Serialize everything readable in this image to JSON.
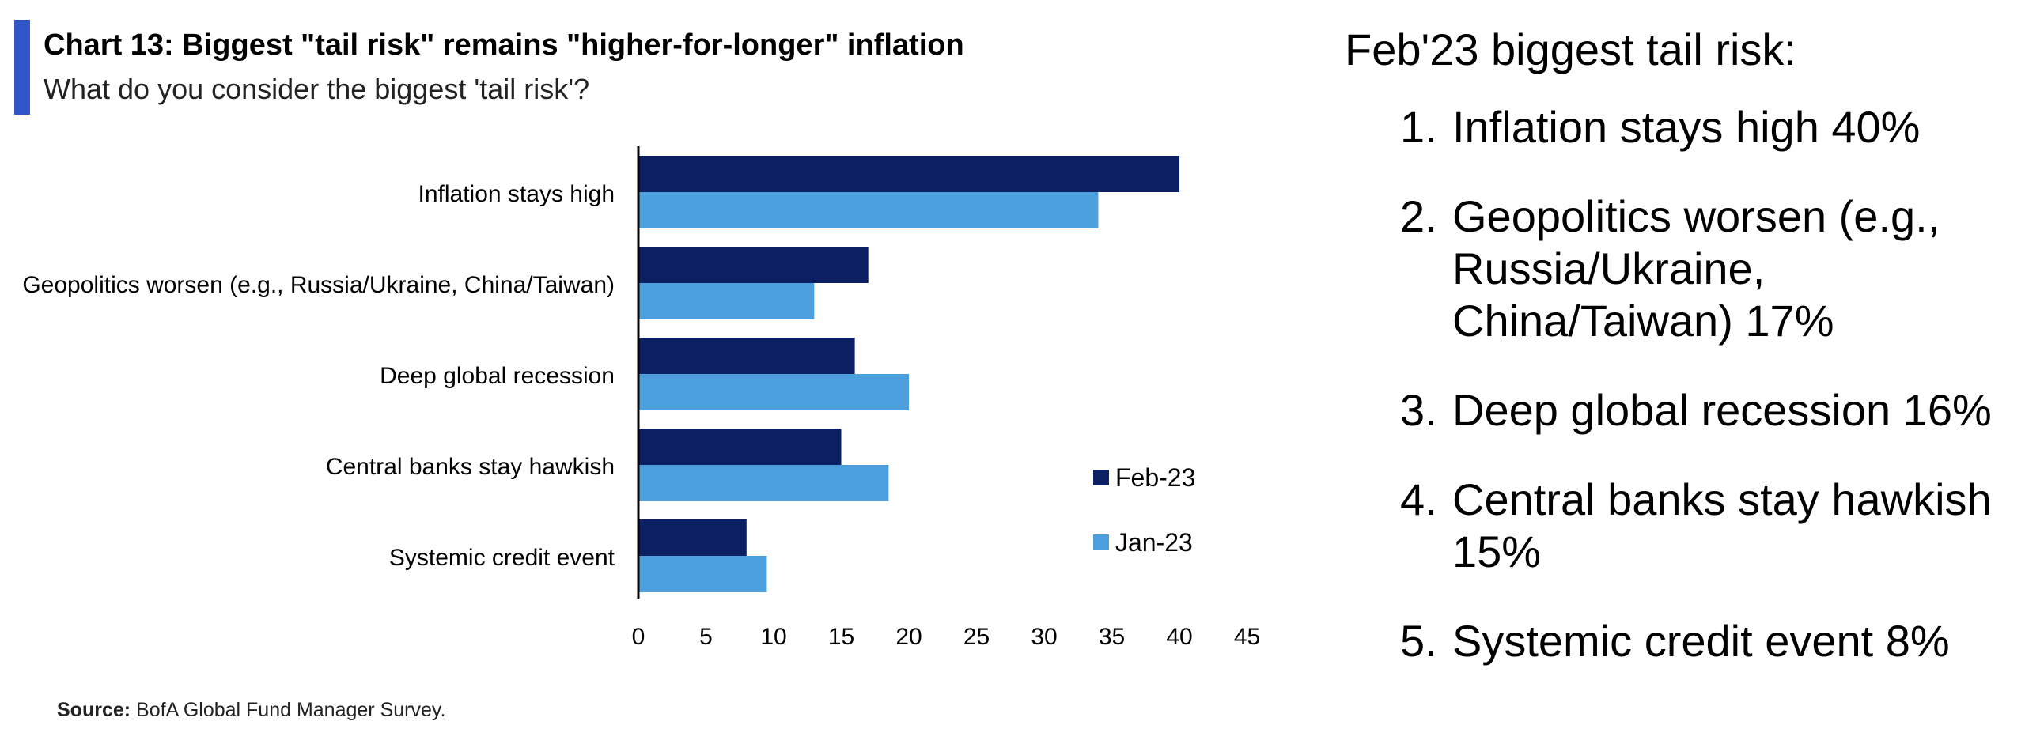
{
  "header": {
    "title": "Chart 13: Biggest \"tail risk\" remains \"higher-for-longer\" inflation",
    "subtitle": "What do you consider the biggest 'tail risk'?"
  },
  "footer": {
    "source_label": "Source:",
    "source_text": "BofA Global Fund Manager Survey."
  },
  "chart_data": {
    "type": "bar",
    "orientation": "horizontal",
    "categories": [
      "Inflation stays high",
      "Geopolitics worsen (e.g., Russia/Ukraine, China/Taiwan)",
      "Deep global recession",
      "Central banks stay hawkish",
      "Systemic credit event"
    ],
    "series": [
      {
        "name": "Feb-23",
        "values": [
          40,
          17,
          16,
          15,
          8
        ],
        "color": "#0c1f63"
      },
      {
        "name": "Jan-23",
        "values": [
          34,
          13,
          20,
          18.5,
          9.5
        ],
        "color": "#4a9fdc"
      }
    ],
    "xlim": [
      0,
      45
    ],
    "xticks": [
      0,
      5,
      10,
      15,
      20,
      25,
      30,
      35,
      40,
      45
    ],
    "grid": false,
    "legend_placement": "right"
  },
  "panel": {
    "title": "Feb'23 biggest tail risk:",
    "items": [
      {
        "num": "1.",
        "text": "Inflation stays high 40%"
      },
      {
        "num": "2.",
        "text": "Geopolitics worsen (e.g., Russia/Ukraine, China/Taiwan) 17%"
      },
      {
        "num": "3.",
        "text": "Deep global recession 16%"
      },
      {
        "num": "4.",
        "text": "Central banks stay hawkish 15%"
      },
      {
        "num": "5.",
        "text": "Systemic credit event 8%"
      }
    ]
  }
}
